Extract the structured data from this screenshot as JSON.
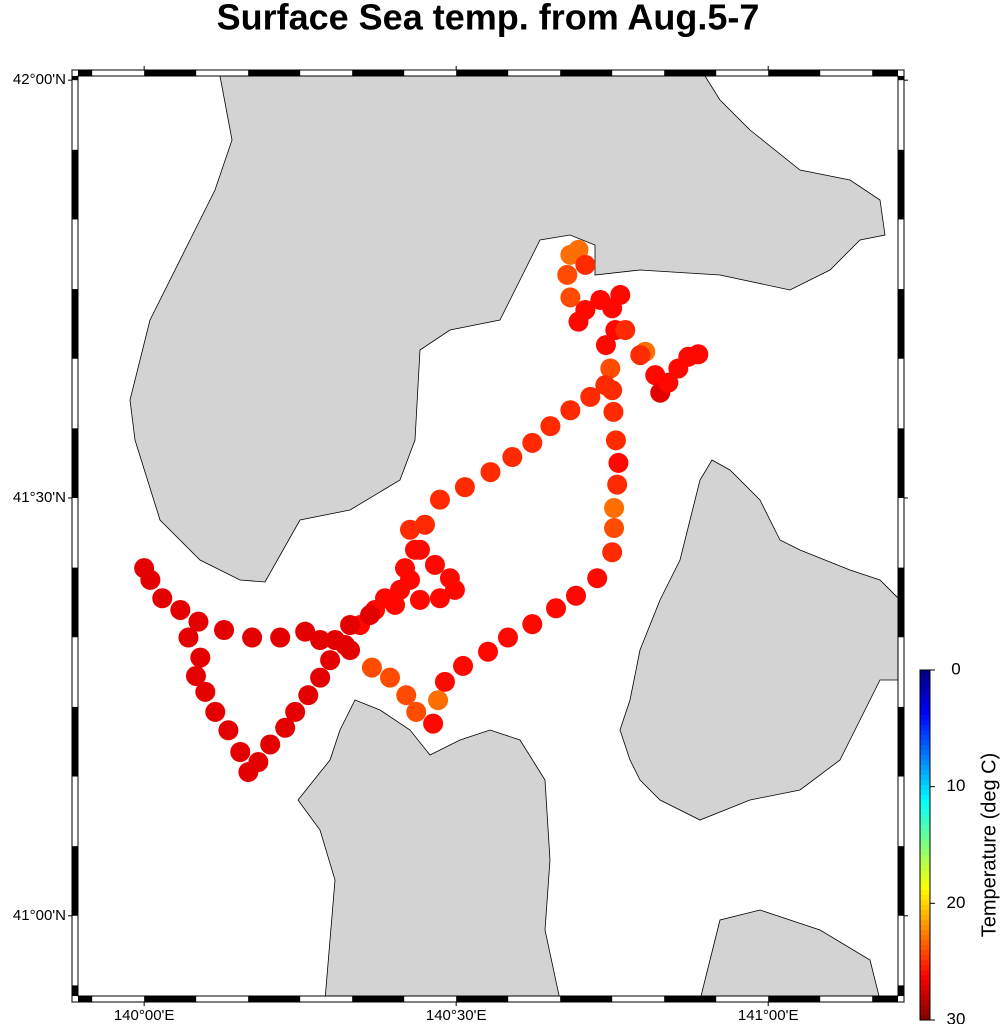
{
  "chart_data": {
    "type": "scatter",
    "title": "Surface Sea temp. from Aug.5-7",
    "xlim": [
      139.894,
      141.208
    ],
    "ylim": [
      40.904,
      42.005
    ],
    "xticks": [
      {
        "value": 140,
        "label": "140°00'E"
      },
      {
        "value": 140.5,
        "label": "140°30'E"
      },
      {
        "value": 141,
        "label": "141°00'E"
      }
    ],
    "yticks": [
      {
        "value": 41,
        "label": "41°00'N"
      },
      {
        "value": 41.5,
        "label": "41°30'N"
      },
      {
        "value": 42,
        "label": "42°00'N"
      }
    ],
    "colormap": "jet",
    "clim": [
      0,
      30
    ],
    "cticks": [
      0,
      10,
      20,
      30
    ],
    "colorbar_label": "Temperature (deg C)",
    "x": [
      140.0,
      140.01,
      140.029,
      140.058,
      140.071,
      140.09,
      140.083,
      140.098,
      140.114,
      140.135,
      140.154,
      140.167,
      140.183,
      140.202,
      140.226,
      140.242,
      140.263,
      140.282,
      140.298,
      140.322,
      140.346,
      140.37,
      140.386,
      140.41,
      140.426,
      140.418,
      140.434,
      140.426,
      140.45,
      140.442,
      140.466,
      140.49,
      140.498,
      140.474,
      140.442,
      140.402,
      140.362,
      140.33,
      140.306,
      140.282,
      140.258,
      140.218,
      140.173,
      140.128,
      140.087,
      140.33,
      140.365,
      140.394,
      140.42,
      140.436,
      140.463,
      140.471,
      140.482,
      140.511,
      140.551,
      140.583,
      140.622,
      140.66,
      140.692,
      140.726,
      140.75,
      140.753,
      140.753,
      140.758,
      140.76,
      140.756,
      140.752,
      140.75,
      140.747,
      140.74,
      140.755,
      140.75,
      140.763,
      140.731,
      140.707,
      140.696,
      140.683,
      140.678,
      140.683,
      140.696,
      140.707,
      140.771,
      140.803,
      140.819,
      140.827,
      140.84,
      140.856,
      140.872,
      140.888,
      140.795,
      140.474,
      140.514,
      140.555,
      140.59,
      140.622,
      140.651,
      140.683,
      140.715,
      140.739
    ],
    "y": [
      41.416,
      41.402,
      41.38,
      41.366,
      41.333,
      41.309,
      41.287,
      41.268,
      41.244,
      41.222,
      41.196,
      41.172,
      41.184,
      41.205,
      41.225,
      41.244,
      41.264,
      41.285,
      41.306,
      41.324,
      41.348,
      41.366,
      41.38,
      41.39,
      41.402,
      41.416,
      41.438,
      41.462,
      41.468,
      41.438,
      41.42,
      41.404,
      41.39,
      41.38,
      41.378,
      41.372,
      41.36,
      41.348,
      41.33,
      41.33,
      41.34,
      41.333,
      41.333,
      41.342,
      41.352,
      41.318,
      41.297,
      41.285,
      41.264,
      41.244,
      41.23,
      41.258,
      41.28,
      41.299,
      41.316,
      41.333,
      41.349,
      41.368,
      41.383,
      41.404,
      41.435,
      41.464,
      41.488,
      41.516,
      41.542,
      41.569,
      41.603,
      41.629,
      41.655,
      41.683,
      41.701,
      41.727,
      41.743,
      41.737,
      41.725,
      41.711,
      41.74,
      41.767,
      41.791,
      41.797,
      41.779,
      41.701,
      41.675,
      41.647,
      41.626,
      41.638,
      41.655,
      41.669,
      41.672,
      41.671,
      41.498,
      41.513,
      41.531,
      41.549,
      41.566,
      41.586,
      41.605,
      41.621,
      41.635
    ],
    "values": [
      27,
      27,
      27,
      27,
      27,
      27,
      27,
      27,
      27,
      27,
      27,
      27,
      27,
      27,
      27,
      27,
      27,
      27,
      27,
      27,
      26,
      26,
      26,
      26,
      26,
      26,
      26,
      25,
      25,
      26,
      26,
      26,
      26,
      26,
      26,
      26,
      27,
      27,
      27,
      27,
      27,
      27,
      27,
      27,
      27,
      27,
      24,
      24,
      24,
      24,
      26,
      23,
      26,
      26,
      26,
      26,
      26,
      26,
      26,
      26,
      25,
      24,
      23,
      25,
      26,
      25,
      25,
      25,
      24,
      26,
      26,
      26,
      26,
      26,
      26,
      26,
      24,
      24,
      23,
      23,
      25,
      25,
      23,
      26,
      27,
      26,
      26,
      26,
      26,
      25,
      25,
      25,
      25,
      25,
      25,
      25,
      25,
      25,
      25
    ]
  }
}
